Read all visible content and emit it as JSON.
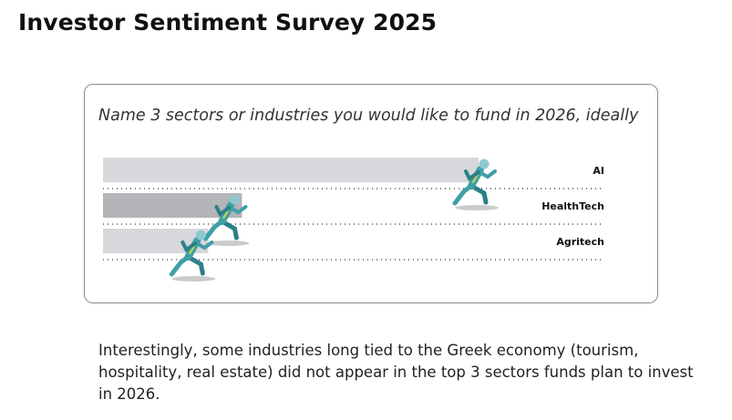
{
  "header": {
    "title": "Investor Sentiment Survey 2025"
  },
  "card": {
    "question": "Name 3 sectors or industries you would like to fund in 2026, ideally"
  },
  "chart_data": {
    "type": "bar",
    "orientation": "horizontal",
    "categories": [
      "AI",
      "HealthTech",
      "Agritech"
    ],
    "values": [
      100,
      37,
      28
    ],
    "unit": "relative",
    "xlim": [
      0,
      100
    ],
    "grid": false,
    "legend": "none",
    "colors": {
      "AI": "#d6d8db",
      "HealthTech": "#b3b5b8",
      "Agritech": "#d6d8db"
    },
    "marker_icon": "runner-icon"
  },
  "footer": {
    "text": "Interestingly, some industries long tied to the Greek economy (tourism, hospitality, real estate) did not appear in the top 3 sectors funds plan to invest in 2026."
  }
}
